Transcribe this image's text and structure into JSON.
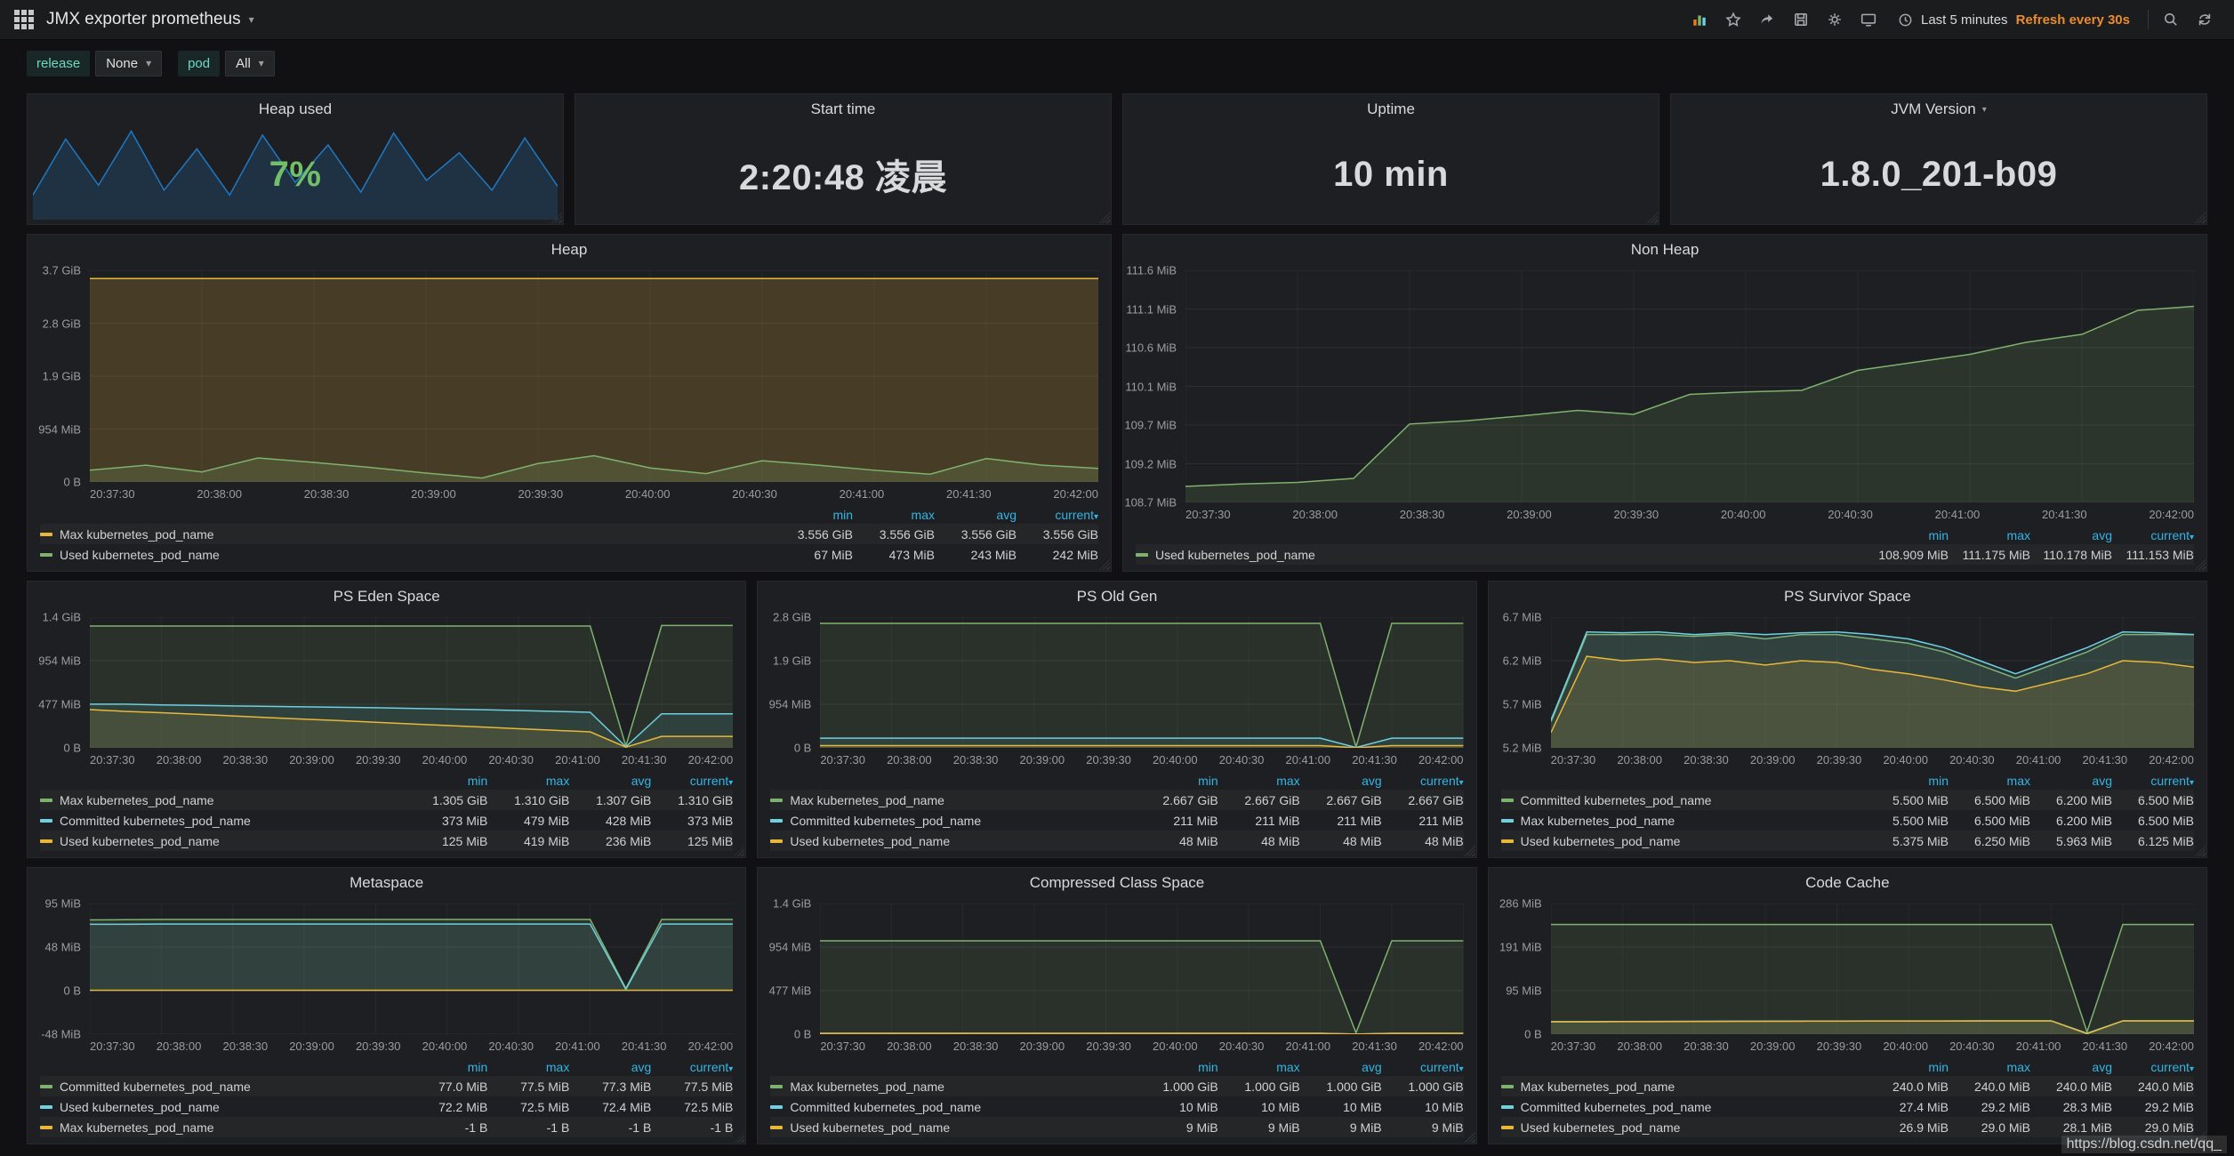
{
  "navbar": {
    "title": "JMX exporter prometheus",
    "time_range": "Last 5 minutes",
    "refresh_label": "Refresh every 30s",
    "icon_names": [
      "apps-grid-icon",
      "add-panel-icon",
      "star-icon",
      "share-icon",
      "save-icon",
      "gear-icon",
      "tv-mode-icon",
      "clock-icon",
      "search-icon",
      "refresh-icon"
    ]
  },
  "variables": [
    {
      "label": "release",
      "value": "None"
    },
    {
      "label": "pod",
      "value": "All"
    }
  ],
  "stat_panels": [
    {
      "title": "Heap used",
      "value": "7%",
      "value_color": "#73bf69",
      "spark_color": "#1f78c1",
      "sparkline": [
        25,
        82,
        35,
        90,
        30,
        72,
        25,
        86,
        38,
        76,
        28,
        88,
        40,
        68,
        30,
        83,
        34
      ]
    },
    {
      "title": "Start time",
      "value": "2:20:48 凌晨",
      "value_color": "#d8d9da"
    },
    {
      "title": "Uptime",
      "value": "10 min",
      "value_color": "#d8d9da"
    },
    {
      "title": "JVM Version",
      "value": "1.8.0_201-b09",
      "value_color": "#d8d9da",
      "caret": true
    }
  ],
  "x_ticks": [
    "20:37:30",
    "20:38:00",
    "20:38:30",
    "20:39:00",
    "20:39:30",
    "20:40:00",
    "20:40:30",
    "20:41:00",
    "20:41:30",
    "20:42:00"
  ],
  "legend_columns": [
    "min",
    "max",
    "avg",
    "current"
  ],
  "watermark": "https://blog.csdn.net/qq_",
  "chart_data": [
    {
      "type": "area",
      "title": "Heap",
      "row": 0,
      "unit": "MiB",
      "ymin": 0,
      "ymax": 3789,
      "y_ticks": [
        "3.7 GiB",
        "2.8 GiB",
        "1.9 GiB",
        "954 MiB",
        "0 B"
      ],
      "series": [
        {
          "name": "Max kubernetes_pod_name",
          "color": "#EAB839",
          "fill": 0.2,
          "values": [
            3641,
            3641,
            3641,
            3641,
            3641,
            3641,
            3641,
            3641,
            3641,
            3641,
            3641,
            3641,
            3641,
            3641,
            3641,
            3641,
            3641,
            3641,
            3641
          ]
        },
        {
          "name": "Used kubernetes_pod_name",
          "color": "#7EB26D",
          "fill": 0.18,
          "values": [
            210,
            300,
            180,
            430,
            350,
            260,
            160,
            70,
            330,
            470,
            250,
            150,
            380,
            300,
            210,
            140,
            420,
            300,
            242
          ]
        }
      ],
      "legend": {
        "rows": [
          {
            "label": "Max kubernetes_pod_name",
            "color": "#EAB839",
            "values": [
              "3.556 GiB",
              "3.556 GiB",
              "3.556 GiB",
              "3.556 GiB"
            ]
          },
          {
            "label": "Used kubernetes_pod_name",
            "color": "#7EB26D",
            "values": [
              "67 MiB",
              "473 MiB",
              "243 MiB",
              "242 MiB"
            ]
          }
        ]
      }
    },
    {
      "type": "area",
      "title": "Non Heap",
      "row": 0,
      "unit": "MiB",
      "ymin": 108.7,
      "ymax": 111.6,
      "y_ticks": [
        "111.6 MiB",
        "111.1 MiB",
        "110.6 MiB",
        "110.1 MiB",
        "109.7 MiB",
        "109.2 MiB",
        "108.7 MiB"
      ],
      "series": [
        {
          "name": "Used kubernetes_pod_name",
          "color": "#7EB26D",
          "fill": 0.15,
          "values": [
            108.9,
            108.93,
            108.95,
            109.0,
            109.68,
            109.72,
            109.78,
            109.85,
            109.8,
            110.05,
            110.08,
            110.1,
            110.35,
            110.45,
            110.55,
            110.7,
            110.8,
            111.1,
            111.15
          ]
        }
      ],
      "legend": {
        "rows": [
          {
            "label": "Used kubernetes_pod_name",
            "color": "#7EB26D",
            "values": [
              "108.909 MiB",
              "111.175 MiB",
              "110.178 MiB",
              "111.153 MiB"
            ]
          }
        ]
      }
    },
    {
      "type": "area",
      "title": "PS Eden Space",
      "row": 1,
      "unit": "MiB",
      "ymin": 0,
      "ymax": 1433,
      "y_ticks": [
        "1.4 GiB",
        "954 MiB",
        "477 MiB",
        "0 B"
      ],
      "series": [
        {
          "name": "Max kubernetes_pod_name",
          "color": "#7EB26D",
          "fill": 0.12,
          "values": [
            1336,
            1336,
            1336,
            1336,
            1336,
            1336,
            1336,
            1336,
            1336,
            1336,
            1336,
            1336,
            1336,
            1336,
            1336,
            20,
            1341,
            1341,
            1341
          ]
        },
        {
          "name": "Committed kubernetes_pod_name",
          "color": "#6ED0E0",
          "fill": 0.1,
          "values": [
            479,
            479,
            470,
            465,
            460,
            455,
            450,
            445,
            440,
            432,
            425,
            418,
            410,
            400,
            390,
            12,
            373,
            373,
            373
          ]
        },
        {
          "name": "Used kubernetes_pod_name",
          "color": "#EAB839",
          "fill": 0.12,
          "values": [
            419,
            400,
            385,
            368,
            350,
            332,
            315,
            298,
            280,
            262,
            245,
            228,
            210,
            192,
            175,
            8,
            125,
            125,
            125
          ]
        }
      ],
      "legend": {
        "rows": [
          {
            "label": "Max kubernetes_pod_name",
            "color": "#7EB26D",
            "values": [
              "1.305 GiB",
              "1.310 GiB",
              "1.307 GiB",
              "1.310 GiB"
            ]
          },
          {
            "label": "Committed kubernetes_pod_name",
            "color": "#6ED0E0",
            "values": [
              "373 MiB",
              "479 MiB",
              "428 MiB",
              "373 MiB"
            ]
          },
          {
            "label": "Used kubernetes_pod_name",
            "color": "#EAB839",
            "values": [
              "125 MiB",
              "419 MiB",
              "236 MiB",
              "125 MiB"
            ]
          }
        ]
      }
    },
    {
      "type": "area",
      "title": "PS Old Gen",
      "row": 1,
      "unit": "MiB",
      "ymin": 0,
      "ymax": 2867,
      "y_ticks": [
        "2.8 GiB",
        "1.9 GiB",
        "954 MiB",
        "0 B"
      ],
      "series": [
        {
          "name": "Max kubernetes_pod_name",
          "color": "#7EB26D",
          "fill": 0.12,
          "values": [
            2731,
            2731,
            2731,
            2731,
            2731,
            2731,
            2731,
            2731,
            2731,
            2731,
            2731,
            2731,
            2731,
            2731,
            2731,
            20,
            2731,
            2731,
            2731
          ]
        },
        {
          "name": "Committed kubernetes_pod_name",
          "color": "#6ED0E0",
          "fill": 0.1,
          "values": [
            211,
            211,
            211,
            211,
            211,
            211,
            211,
            211,
            211,
            211,
            211,
            211,
            211,
            211,
            211,
            8,
            211,
            211,
            211
          ]
        },
        {
          "name": "Used kubernetes_pod_name",
          "color": "#EAB839",
          "fill": 0.12,
          "values": [
            48,
            48,
            48,
            48,
            48,
            48,
            48,
            48,
            48,
            48,
            48,
            48,
            48,
            48,
            48,
            2,
            48,
            48,
            48
          ]
        }
      ],
      "legend": {
        "rows": [
          {
            "label": "Max kubernetes_pod_name",
            "color": "#7EB26D",
            "values": [
              "2.667 GiB",
              "2.667 GiB",
              "2.667 GiB",
              "2.667 GiB"
            ]
          },
          {
            "label": "Committed kubernetes_pod_name",
            "color": "#6ED0E0",
            "values": [
              "211 MiB",
              "211 MiB",
              "211 MiB",
              "211 MiB"
            ]
          },
          {
            "label": "Used kubernetes_pod_name",
            "color": "#EAB839",
            "values": [
              "48 MiB",
              "48 MiB",
              "48 MiB",
              "48 MiB"
            ]
          }
        ]
      }
    },
    {
      "type": "area",
      "title": "PS Survivor Space",
      "row": 1,
      "unit": "MiB",
      "ymin": 5.2,
      "ymax": 6.7,
      "y_ticks": [
        "6.7 MiB",
        "6.2 MiB",
        "5.7 MiB",
        "5.2 MiB"
      ],
      "series": [
        {
          "name": "Committed kubernetes_pod_name",
          "color": "#7EB26D",
          "fill": 0.14,
          "values": [
            5.5,
            6.5,
            6.5,
            6.5,
            6.48,
            6.5,
            6.45,
            6.5,
            6.5,
            6.45,
            6.4,
            6.3,
            6.15,
            6.0,
            6.15,
            6.3,
            6.5,
            6.5,
            6.5
          ]
        },
        {
          "name": "Max kubernetes_pod_name",
          "color": "#6ED0E0",
          "fill": 0.1,
          "values": [
            5.52,
            6.53,
            6.52,
            6.53,
            6.5,
            6.52,
            6.5,
            6.52,
            6.53,
            6.5,
            6.45,
            6.35,
            6.2,
            6.05,
            6.2,
            6.35,
            6.53,
            6.52,
            6.5
          ]
        },
        {
          "name": "Used kubernetes_pod_name",
          "color": "#EAB839",
          "fill": 0.14,
          "values": [
            5.375,
            6.25,
            6.2,
            6.22,
            6.18,
            6.2,
            6.15,
            6.2,
            6.18,
            6.1,
            6.05,
            5.98,
            5.9,
            5.85,
            5.95,
            6.05,
            6.2,
            6.18,
            6.125
          ]
        }
      ],
      "legend": {
        "rows": [
          {
            "label": "Committed kubernetes_pod_name",
            "color": "#7EB26D",
            "values": [
              "5.500 MiB",
              "6.500 MiB",
              "6.200 MiB",
              "6.500 MiB"
            ]
          },
          {
            "label": "Max kubernetes_pod_name",
            "color": "#6ED0E0",
            "values": [
              "5.500 MiB",
              "6.500 MiB",
              "6.200 MiB",
              "6.500 MiB"
            ]
          },
          {
            "label": "Used kubernetes_pod_name",
            "color": "#EAB839",
            "values": [
              "5.375 MiB",
              "6.250 MiB",
              "5.963 MiB",
              "6.125 MiB"
            ]
          }
        ]
      }
    },
    {
      "type": "area",
      "title": "Metaspace",
      "row": 2,
      "unit": "MiB",
      "ymin": -48,
      "ymax": 95,
      "y_ticks": [
        "95 MiB",
        "48 MiB",
        "0 B",
        "-48 MiB"
      ],
      "series": [
        {
          "name": "Committed kubernetes_pod_name",
          "color": "#7EB26D",
          "fill": 0.14,
          "values": [
            77.0,
            77.2,
            77.5,
            77.5,
            77.5,
            77.5,
            77.5,
            77.5,
            77.5,
            77.5,
            77.5,
            77.5,
            77.5,
            77.5,
            77.5,
            2,
            77.5,
            77.5,
            77.5
          ]
        },
        {
          "name": "Used kubernetes_pod_name",
          "color": "#6ED0E0",
          "fill": 0.1,
          "values": [
            72.2,
            72.3,
            72.5,
            72.5,
            72.5,
            72.5,
            72.5,
            72.5,
            72.5,
            72.5,
            72.5,
            72.5,
            72.5,
            72.5,
            72.5,
            1,
            72.5,
            72.5,
            72.5
          ]
        },
        {
          "name": "Max kubernetes_pod_name",
          "color": "#EAB839",
          "fill": 0,
          "values": [
            0,
            0,
            0,
            0,
            0,
            0,
            0,
            0,
            0,
            0,
            0,
            0,
            0,
            0,
            0,
            0,
            0,
            0,
            0
          ]
        }
      ],
      "legend": {
        "rows": [
          {
            "label": "Committed kubernetes_pod_name",
            "color": "#7EB26D",
            "values": [
              "77.0 MiB",
              "77.5 MiB",
              "77.3 MiB",
              "77.5 MiB"
            ]
          },
          {
            "label": "Used kubernetes_pod_name",
            "color": "#6ED0E0",
            "values": [
              "72.2 MiB",
              "72.5 MiB",
              "72.4 MiB",
              "72.5 MiB"
            ]
          },
          {
            "label": "Max kubernetes_pod_name",
            "color": "#EAB839",
            "values": [
              "-1 B",
              "-1 B",
              "-1 B",
              "-1 B"
            ]
          }
        ]
      }
    },
    {
      "type": "area",
      "title": "Compressed Class Space",
      "row": 2,
      "unit": "MiB",
      "ymin": 0,
      "ymax": 1433,
      "y_ticks": [
        "1.4 GiB",
        "954 MiB",
        "477 MiB",
        "0 B"
      ],
      "series": [
        {
          "name": "Max kubernetes_pod_name",
          "color": "#7EB26D",
          "fill": 0.12,
          "values": [
            1024,
            1024,
            1024,
            1024,
            1024,
            1024,
            1024,
            1024,
            1024,
            1024,
            1024,
            1024,
            1024,
            1024,
            1024,
            15,
            1024,
            1024,
            1024
          ]
        },
        {
          "name": "Committed kubernetes_pod_name",
          "color": "#6ED0E0",
          "fill": 0.1,
          "values": [
            10,
            10,
            10,
            10,
            10,
            10,
            10,
            10,
            10,
            10,
            10,
            10,
            10,
            10,
            10,
            1,
            10,
            10,
            10
          ]
        },
        {
          "name": "Used kubernetes_pod_name",
          "color": "#EAB839",
          "fill": 0.12,
          "values": [
            9,
            9,
            9,
            9,
            9,
            9,
            9,
            9,
            9,
            9,
            9,
            9,
            9,
            9,
            9,
            1,
            9,
            9,
            9
          ]
        }
      ],
      "legend": {
        "rows": [
          {
            "label": "Max kubernetes_pod_name",
            "color": "#7EB26D",
            "values": [
              "1.000 GiB",
              "1.000 GiB",
              "1.000 GiB",
              "1.000 GiB"
            ]
          },
          {
            "label": "Committed kubernetes_pod_name",
            "color": "#6ED0E0",
            "values": [
              "10 MiB",
              "10 MiB",
              "10 MiB",
              "10 MiB"
            ]
          },
          {
            "label": "Used kubernetes_pod_name",
            "color": "#EAB839",
            "values": [
              "9 MiB",
              "9 MiB",
              "9 MiB",
              "9 MiB"
            ]
          }
        ]
      }
    },
    {
      "type": "area",
      "title": "Code Cache",
      "row": 2,
      "unit": "MiB",
      "ymin": 0,
      "ymax": 286,
      "y_ticks": [
        "286 MiB",
        "191 MiB",
        "95 MiB",
        "0 B"
      ],
      "series": [
        {
          "name": "Max kubernetes_pod_name",
          "color": "#7EB26D",
          "fill": 0.12,
          "values": [
            240,
            240,
            240,
            240,
            240,
            240,
            240,
            240,
            240,
            240,
            240,
            240,
            240,
            240,
            240,
            5,
            240,
            240,
            240
          ]
        },
        {
          "name": "Committed kubernetes_pod_name",
          "color": "#6ED0E0",
          "fill": 0.1,
          "values": [
            27.4,
            27.6,
            27.8,
            28.0,
            28.2,
            28.4,
            28.5,
            28.6,
            28.8,
            28.9,
            29.0,
            29.0,
            29.1,
            29.1,
            29.2,
            2,
            29.2,
            29.2,
            29.2
          ]
        },
        {
          "name": "Used kubernetes_pod_name",
          "color": "#EAB839",
          "fill": 0.12,
          "values": [
            26.9,
            27.1,
            27.4,
            27.6,
            27.8,
            28.0,
            28.2,
            28.3,
            28.5,
            28.6,
            28.7,
            28.8,
            28.9,
            28.9,
            29.0,
            1,
            29.0,
            29.0,
            29.0
          ]
        }
      ],
      "legend": {
        "rows": [
          {
            "label": "Max kubernetes_pod_name",
            "color": "#7EB26D",
            "values": [
              "240.0 MiB",
              "240.0 MiB",
              "240.0 MiB",
              "240.0 MiB"
            ]
          },
          {
            "label": "Committed kubernetes_pod_name",
            "color": "#6ED0E0",
            "values": [
              "27.4 MiB",
              "29.2 MiB",
              "28.3 MiB",
              "29.2 MiB"
            ]
          },
          {
            "label": "Used kubernetes_pod_name",
            "color": "#EAB839",
            "values": [
              "26.9 MiB",
              "29.0 MiB",
              "28.1 MiB",
              "29.0 MiB"
            ]
          }
        ]
      }
    }
  ]
}
